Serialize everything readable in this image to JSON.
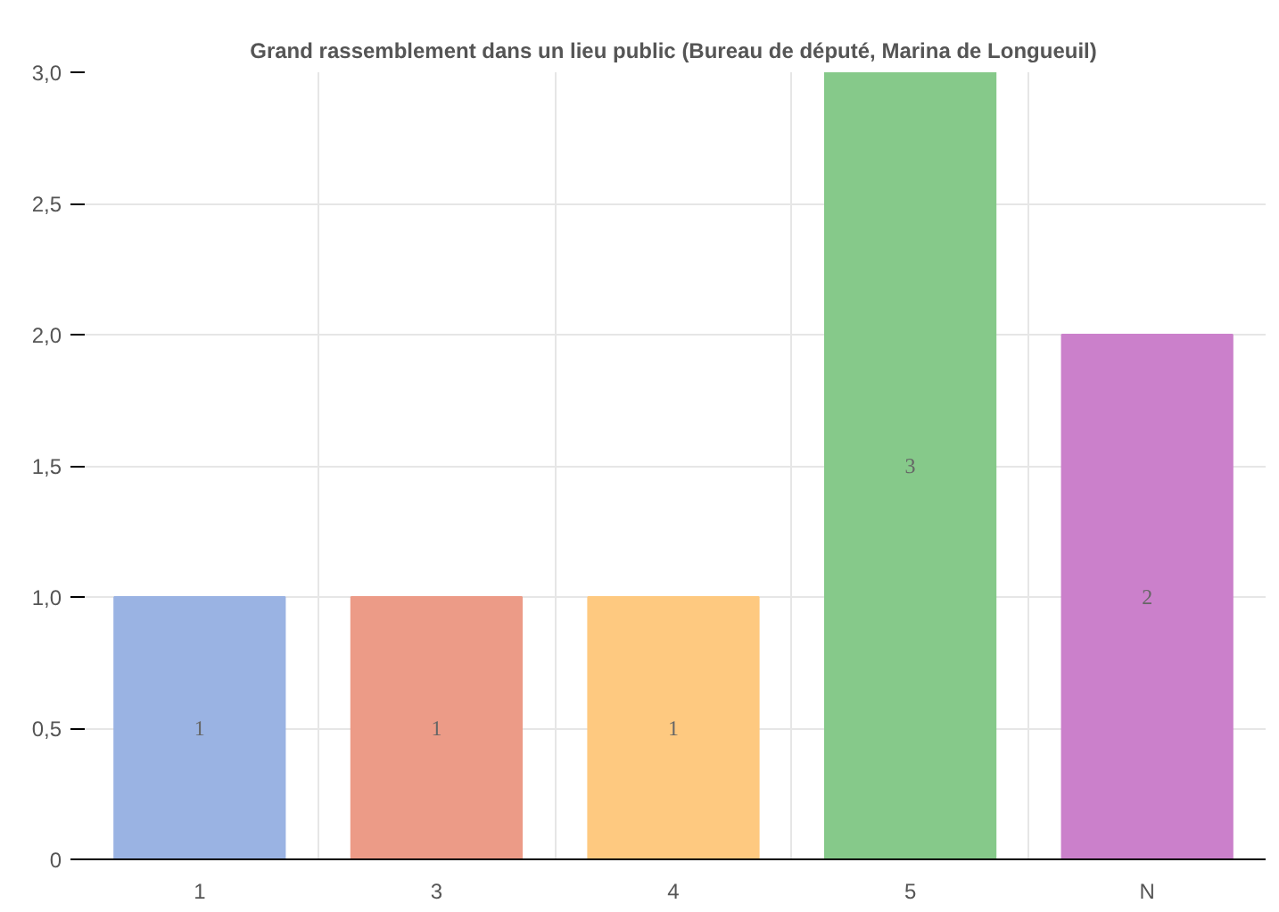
{
  "chart_data": {
    "type": "bar",
    "title": "Grand rassemblement dans un lieu public (Bureau de député, Marina de Longueuil)",
    "categories": [
      "1",
      "3",
      "4",
      "5",
      "N"
    ],
    "values": [
      1,
      1,
      1,
      3,
      2
    ],
    "colors": [
      "#9ab3e3",
      "#ec9b87",
      "#fec980",
      "#86c98a",
      "#cb80cb"
    ],
    "ylim": [
      0,
      3
    ],
    "yticks": [
      {
        "value": 0,
        "label": "0"
      },
      {
        "value": 0.5,
        "label": "0,5"
      },
      {
        "value": 1,
        "label": "1,0"
      },
      {
        "value": 1.5,
        "label": "1,5"
      },
      {
        "value": 2,
        "label": "2,0"
      },
      {
        "value": 2.5,
        "label": "2,5"
      },
      {
        "value": 3,
        "label": "3,0"
      }
    ],
    "grid": true,
    "data_labels": true
  }
}
